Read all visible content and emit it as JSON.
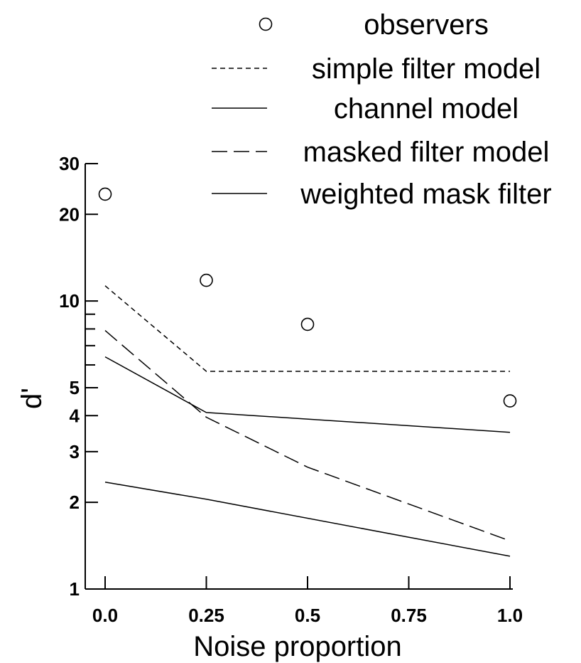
{
  "chart_data": {
    "type": "line",
    "xlabel": "Noise proportion",
    "ylabel": "d'",
    "y_scale": "log",
    "ylim": [
      1,
      30
    ],
    "xlim": [
      0,
      1
    ],
    "x_ticks": [
      {
        "value": 0,
        "label": "0.0"
      },
      {
        "value": 0.25,
        "label": "0.25"
      },
      {
        "value": 0.5,
        "label": "0.5"
      },
      {
        "value": 0.75,
        "label": "0.75"
      },
      {
        "value": 1,
        "label": "1.0"
      }
    ],
    "y_ticks_labeled": [
      {
        "value": 1,
        "label": "1"
      },
      {
        "value": 2,
        "label": "2"
      },
      {
        "value": 3,
        "label": "3"
      },
      {
        "value": 4,
        "label": "4"
      },
      {
        "value": 5,
        "label": "5"
      },
      {
        "value": 10,
        "label": "10"
      },
      {
        "value": 20,
        "label": "20"
      },
      {
        "value": 30,
        "label": "30"
      }
    ],
    "y_ticks_minor": [
      6,
      7,
      8,
      9
    ],
    "grid": false,
    "legend_position": "top-right",
    "series": [
      {
        "name": "observers",
        "style": "circle-marker",
        "x": [
          0,
          0.25,
          0.5,
          1.0
        ],
        "y": [
          23.5,
          11.8,
          8.3,
          4.5
        ]
      },
      {
        "name": "simple filter model",
        "style": "short-dash",
        "x": [
          0,
          0.25,
          1.0
        ],
        "y": [
          11.3,
          5.7,
          5.7
        ]
      },
      {
        "name": "channel model",
        "style": "solid",
        "x": [
          0,
          0.25,
          1.0
        ],
        "y": [
          6.4,
          4.1,
          3.5
        ]
      },
      {
        "name": "masked filter model",
        "style": "long-dash",
        "x": [
          0,
          0.25,
          0.5,
          1.0
        ],
        "y": [
          7.9,
          3.95,
          2.65,
          1.47
        ]
      },
      {
        "name": "weighted mask filter",
        "style": "solid",
        "x": [
          0,
          0.25,
          1.0
        ],
        "y": [
          2.35,
          2.05,
          1.3
        ]
      }
    ]
  }
}
